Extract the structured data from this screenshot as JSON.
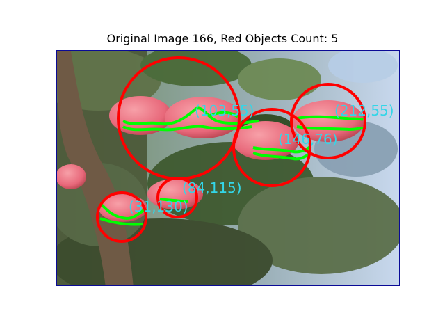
{
  "figure": {
    "title": "Original Image 166, Red Objects Count: 5"
  },
  "colors": {
    "circle": "#ff0000",
    "contour": "#00ff00",
    "label": "#33d6e8",
    "frame": "#0a0a96"
  },
  "detections": [
    {
      "label": "(103,55)"
    },
    {
      "label": "(212,55)"
    },
    {
      "label": "(146,76)"
    },
    {
      "label": "(84,115)"
    },
    {
      "label": "(31,130)"
    }
  ]
}
